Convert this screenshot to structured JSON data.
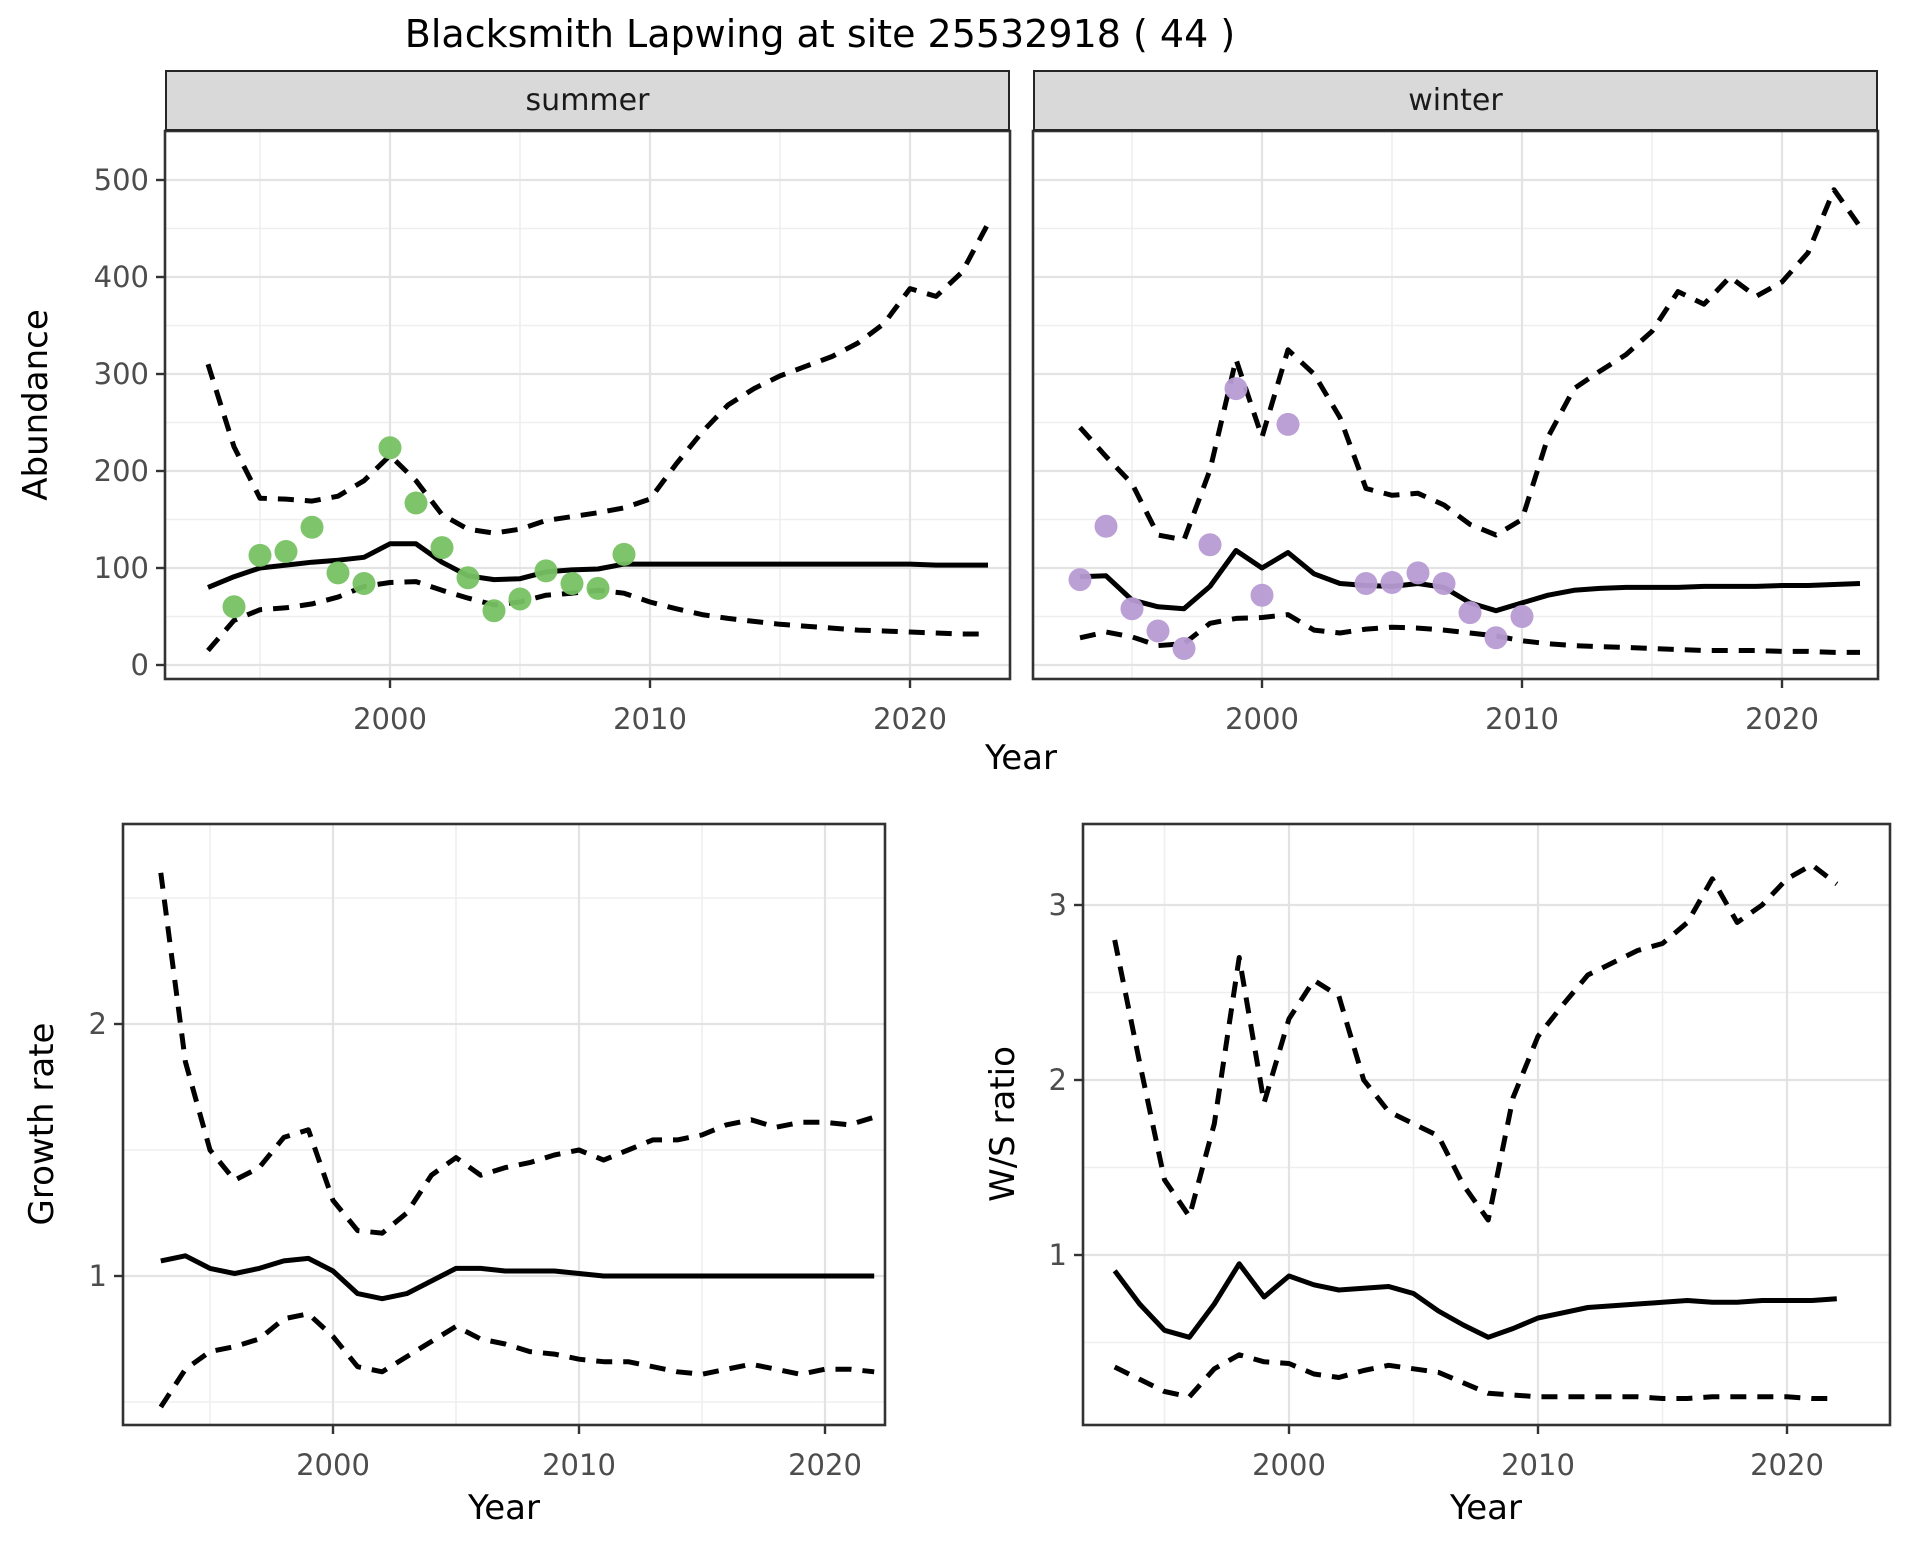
{
  "title": "Blacksmith Lapwing at site 25532918 ( 44 )",
  "facets": [
    {
      "label": "summer"
    },
    {
      "label": "winter"
    }
  ],
  "axis_titles": {
    "y_top": "Abundance",
    "x_top": "Year",
    "y_bottom_left": "Growth rate",
    "x_bottom_left": "Year",
    "y_bottom_right": "W/S ratio",
    "x_bottom_right": "Year"
  },
  "colors": {
    "summer_points": "#77C163",
    "winter_points": "#B79BD3",
    "line": "#000000",
    "strip_bg": "#D9D9D9",
    "grid_major": "#E3E3E3",
    "grid_minor": "#EFEFEF",
    "tick_label": "#4D4D4D",
    "border": "#333333"
  },
  "chart_data": [
    {
      "id": "abundance-summer",
      "type": "line",
      "facet": "summer",
      "ylabel": "Abundance",
      "xlabel": "Year",
      "x_ticks": [
        2000,
        2010,
        2020
      ],
      "x_minor": [
        1995,
        2005,
        2015
      ],
      "y_ticks": [
        0,
        100,
        200,
        300,
        400,
        500
      ],
      "y_minor": [
        50,
        150,
        250,
        350,
        450
      ],
      "ylim": [
        -14,
        550
      ],
      "years": [
        1993,
        1994,
        1995,
        1996,
        1997,
        1998,
        1999,
        2000,
        2001,
        2002,
        2003,
        2004,
        2005,
        2006,
        2007,
        2008,
        2009,
        2010,
        2011,
        2012,
        2013,
        2014,
        2015,
        2016,
        2017,
        2018,
        2019,
        2020,
        2021,
        2022,
        2023
      ],
      "series": [
        {
          "name": "fit",
          "style": "solid",
          "values": [
            80,
            91,
            100,
            103,
            106,
            108,
            111,
            125,
            125,
            106,
            92,
            88,
            89,
            96,
            98,
            99,
            104,
            104,
            104,
            104,
            104,
            104,
            104,
            104,
            104,
            104,
            104,
            104,
            103,
            103,
            103
          ]
        },
        {
          "name": "upper_ci",
          "style": "dashed",
          "values": [
            310,
            225,
            172,
            171,
            169,
            174,
            190,
            216,
            190,
            155,
            140,
            136,
            140,
            149,
            153,
            157,
            162,
            171,
            207,
            240,
            268,
            285,
            298,
            308,
            318,
            332,
            352,
            388,
            380,
            405,
            455
          ]
        },
        {
          "name": "lower_ci",
          "style": "dashed",
          "values": [
            15,
            46,
            57,
            59,
            63,
            70,
            81,
            85,
            86,
            77,
            69,
            62,
            65,
            72,
            74,
            77,
            74,
            65,
            58,
            52,
            48,
            45,
            42,
            40,
            38,
            36,
            35,
            34,
            33,
            32,
            32
          ]
        }
      ],
      "points": {
        "color_key": "summer_points",
        "years": [
          1994,
          1995,
          1996,
          1997,
          1998,
          1999,
          2000,
          2001,
          2002,
          2003,
          2004,
          2005,
          2006,
          2007,
          2008,
          2009
        ],
        "values": [
          60,
          113,
          117,
          142,
          95,
          84,
          224,
          167,
          121,
          90,
          56,
          68,
          97,
          84,
          79,
          114
        ]
      }
    },
    {
      "id": "abundance-winter",
      "type": "line",
      "facet": "winter",
      "ylabel": "Abundance",
      "xlabel": "Year",
      "x_ticks": [
        2000,
        2010,
        2020
      ],
      "x_minor": [
        1995,
        2005,
        2015
      ],
      "y_ticks": [
        0,
        100,
        200,
        300,
        400,
        500
      ],
      "y_minor": [
        50,
        150,
        250,
        350,
        450
      ],
      "ylim": [
        -14,
        550
      ],
      "years": [
        1993,
        1994,
        1995,
        1996,
        1997,
        1998,
        1999,
        2000,
        2001,
        2002,
        2003,
        2004,
        2005,
        2006,
        2007,
        2008,
        2009,
        2010,
        2011,
        2012,
        2013,
        2014,
        2015,
        2016,
        2017,
        2018,
        2019,
        2020,
        2021,
        2022,
        2023
      ],
      "series": [
        {
          "name": "fit",
          "style": "solid",
          "values": [
            91,
            92,
            67,
            60,
            58,
            81,
            118,
            100,
            116,
            94,
            84,
            82,
            81,
            84,
            80,
            64,
            56,
            64,
            72,
            77,
            79,
            80,
            80,
            80,
            81,
            81,
            81,
            82,
            82,
            83,
            84
          ]
        },
        {
          "name": "upper_ci",
          "style": "dashed",
          "values": [
            245,
            215,
            187,
            134,
            129,
            201,
            315,
            235,
            325,
            300,
            255,
            182,
            175,
            177,
            165,
            145,
            134,
            150,
            235,
            285,
            303,
            320,
            344,
            385,
            372,
            400,
            380,
            395,
            425,
            490,
            452
          ]
        },
        {
          "name": "lower_ci",
          "style": "dashed",
          "values": [
            28,
            34,
            29,
            20,
            22,
            43,
            48,
            49,
            52,
            36,
            33,
            37,
            39,
            38,
            36,
            33,
            30,
            25,
            22,
            20,
            19,
            18,
            17,
            16,
            15,
            15,
            15,
            14,
            14,
            13,
            13
          ]
        }
      ],
      "points": {
        "color_key": "winter_points",
        "years": [
          1993,
          1994,
          1995,
          1996,
          1997,
          1998,
          1999,
          2000,
          2001,
          2004,
          2005,
          2006,
          2007,
          2008,
          2009,
          2010
        ],
        "values": [
          88,
          143,
          58,
          35,
          17,
          124,
          285,
          72,
          248,
          84,
          85,
          95,
          84,
          54,
          28,
          50
        ]
      }
    },
    {
      "id": "growth-rate",
      "type": "line",
      "facet": null,
      "ylabel": "Growth rate",
      "xlabel": "Year",
      "x_ticks": [
        2000,
        2010,
        2020
      ],
      "x_minor": [
        1995,
        2005,
        2015
      ],
      "y_ticks": [
        1,
        2
      ],
      "y_minor": [
        0.5,
        1.5,
        2.5
      ],
      "ylim": [
        0.41,
        2.79
      ],
      "years": [
        1993,
        1994,
        1995,
        1996,
        1997,
        1998,
        1999,
        2000,
        2001,
        2002,
        2003,
        2004,
        2005,
        2006,
        2007,
        2008,
        2009,
        2010,
        2011,
        2012,
        2013,
        2014,
        2015,
        2016,
        2017,
        2018,
        2019,
        2020,
        2021,
        2022
      ],
      "series": [
        {
          "name": "fit",
          "style": "solid",
          "values": [
            1.06,
            1.08,
            1.03,
            1.01,
            1.03,
            1.06,
            1.07,
            1.02,
            0.93,
            0.91,
            0.93,
            0.98,
            1.03,
            1.03,
            1.02,
            1.02,
            1.02,
            1.01,
            1.0,
            1.0,
            1.0,
            1.0,
            1.0,
            1.0,
            1.0,
            1.0,
            1.0,
            1.0,
            1.0,
            1.0
          ]
        },
        {
          "name": "upper_ci",
          "style": "dashed",
          "values": [
            2.6,
            1.85,
            1.5,
            1.38,
            1.43,
            1.55,
            1.58,
            1.3,
            1.18,
            1.17,
            1.25,
            1.4,
            1.47,
            1.4,
            1.43,
            1.45,
            1.48,
            1.5,
            1.46,
            1.5,
            1.54,
            1.54,
            1.56,
            1.6,
            1.62,
            1.59,
            1.61,
            1.61,
            1.6,
            1.63
          ]
        },
        {
          "name": "lower_ci",
          "style": "dashed",
          "values": [
            0.48,
            0.63,
            0.7,
            0.72,
            0.75,
            0.83,
            0.85,
            0.76,
            0.64,
            0.62,
            0.68,
            0.74,
            0.8,
            0.75,
            0.73,
            0.7,
            0.69,
            0.67,
            0.66,
            0.66,
            0.64,
            0.62,
            0.61,
            0.63,
            0.65,
            0.63,
            0.61,
            0.63,
            0.63,
            0.62
          ]
        }
      ],
      "points": null
    },
    {
      "id": "ws-ratio",
      "type": "line",
      "facet": null,
      "ylabel": "W/S ratio",
      "xlabel": "Year",
      "x_ticks": [
        2000,
        2010,
        2020
      ],
      "x_minor": [
        1995,
        2005,
        2015
      ],
      "y_ticks": [
        1,
        2,
        3
      ],
      "y_minor": [
        0.5,
        1.5,
        2.5
      ],
      "ylim": [
        0.03,
        3.46
      ],
      "years": [
        1993,
        1994,
        1995,
        1996,
        1997,
        1998,
        1999,
        2000,
        2001,
        2002,
        2003,
        2004,
        2005,
        2006,
        2007,
        2008,
        2009,
        2010,
        2011,
        2012,
        2013,
        2014,
        2015,
        2016,
        2017,
        2018,
        2019,
        2020,
        2021,
        2022
      ],
      "series": [
        {
          "name": "fit",
          "style": "solid",
          "values": [
            0.91,
            0.72,
            0.57,
            0.53,
            0.72,
            0.95,
            0.76,
            0.88,
            0.83,
            0.8,
            0.81,
            0.82,
            0.78,
            0.68,
            0.6,
            0.53,
            0.58,
            0.64,
            0.67,
            0.7,
            0.71,
            0.72,
            0.73,
            0.74,
            0.73,
            0.73,
            0.74,
            0.74,
            0.74,
            0.75
          ]
        },
        {
          "name": "upper_ci",
          "style": "dashed",
          "values": [
            2.8,
            2.1,
            1.43,
            1.22,
            1.75,
            2.7,
            1.87,
            2.35,
            2.57,
            2.48,
            2.0,
            1.82,
            1.75,
            1.68,
            1.4,
            1.2,
            1.9,
            2.25,
            2.43,
            2.6,
            2.67,
            2.74,
            2.78,
            2.9,
            3.15,
            2.9,
            3.0,
            3.15,
            3.23,
            3.12
          ]
        },
        {
          "name": "lower_ci",
          "style": "dashed",
          "values": [
            0.36,
            0.29,
            0.22,
            0.19,
            0.35,
            0.43,
            0.39,
            0.38,
            0.32,
            0.3,
            0.34,
            0.37,
            0.35,
            0.33,
            0.27,
            0.21,
            0.2,
            0.19,
            0.19,
            0.19,
            0.19,
            0.19,
            0.18,
            0.18,
            0.19,
            0.19,
            0.19,
            0.19,
            0.18,
            0.18
          ]
        }
      ],
      "points": null
    }
  ]
}
